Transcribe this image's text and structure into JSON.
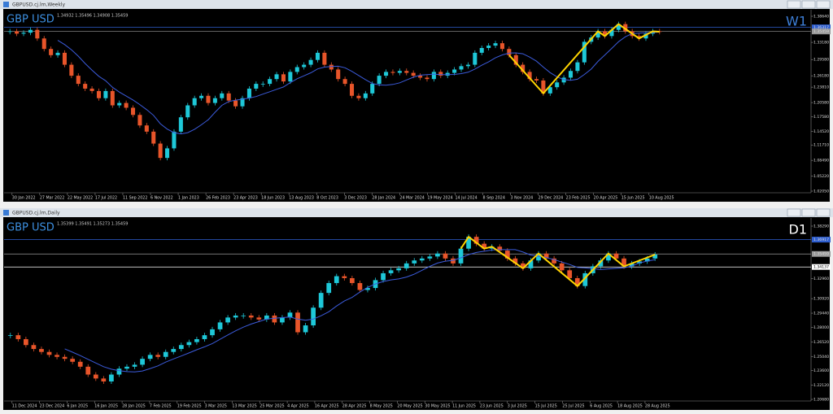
{
  "windows": [
    {
      "title": "GBPUSD.cj.lm,Weekly",
      "ohlc": "1.34932 1.35496 1.34908 1.35459",
      "symbol": "GBP USD",
      "timeframe": "W1",
      "timeframe_color": "#3d7fd8",
      "price_labels": [
        {
          "value": 1.3864,
          "label": "1.38640"
        },
        {
          "value": 1.36317,
          "label": "1.36317",
          "box": "#2f5fd0"
        },
        {
          "value": 1.35459,
          "label": "1.35459",
          "box": "#9a9a9a"
        },
        {
          "value": 1.3318,
          "label": "1.33180"
        },
        {
          "value": 1.2958,
          "label": "1.29580"
        },
        {
          "value": 1.2618,
          "label": "1.26180"
        },
        {
          "value": 1.2381,
          "label": "1.23810"
        },
        {
          "value": 1.2058,
          "label": "1.20580"
        },
        {
          "value": 1.1758,
          "label": "1.17580"
        },
        {
          "value": 1.1452,
          "label": "1.14520"
        },
        {
          "value": 1.1171,
          "label": "1.11710"
        },
        {
          "value": 1.0849,
          "label": "1.08490"
        },
        {
          "value": 1.0522,
          "label": "1.05220"
        },
        {
          "value": 1.0205,
          "label": "1.02050"
        }
      ],
      "date_labels": [
        "30 Jan 2022",
        "27 Mar 2022",
        "22 May 2022",
        "17 Jul 2022",
        "11 Sep 2022",
        "6 Nov 2022",
        "1 Jan 2023",
        "26 Feb 2023",
        "23 Apr 2023",
        "18 Jun 2023",
        "13 Aug 2023",
        "8 Oct 2023",
        "3 Dec 2023",
        "28 Jan 2024",
        "24 Mar 2024",
        "19 May 2024",
        "14 Jul 2024",
        "8 Sep 2024",
        "3 Nov 2024",
        "29 Dec 2024",
        "23 Feb 2025",
        "20 Apr 2025",
        "15 Jun 2025",
        "10 Aug 2025"
      ],
      "closes": [
        1.355,
        1.35,
        1.352,
        1.358,
        1.34,
        1.318,
        1.305,
        1.31,
        1.285,
        1.262,
        1.245,
        1.235,
        1.23,
        1.215,
        1.23,
        1.2,
        1.205,
        1.195,
        1.18,
        1.158,
        1.145,
        1.12,
        1.09,
        1.11,
        1.145,
        1.175,
        1.2,
        1.215,
        1.22,
        1.205,
        1.215,
        1.225,
        1.21,
        1.198,
        1.215,
        1.235,
        1.245,
        1.245,
        1.255,
        1.265,
        1.25,
        1.27,
        1.28,
        1.285,
        1.295,
        1.31,
        1.285,
        1.275,
        1.255,
        1.245,
        1.22,
        1.215,
        1.225,
        1.245,
        1.262,
        1.27,
        1.268,
        1.272,
        1.268,
        1.262,
        1.258,
        1.255,
        1.27,
        1.262,
        1.268,
        1.275,
        1.282,
        1.285,
        1.31,
        1.32,
        1.325,
        1.33,
        1.318,
        1.305,
        1.285,
        1.27,
        1.255,
        1.252,
        1.225,
        1.238,
        1.248,
        1.258,
        1.272,
        1.29,
        1.333,
        1.342,
        1.355,
        1.345,
        1.358,
        1.37,
        1.355,
        1.345,
        1.34,
        1.35,
        1.355,
        1.354
      ]
    },
    {
      "title": "GBPUSD.cj.lm,Daily",
      "ohlc": "1.35399 1.35491 1.35273 1.35459",
      "symbol": "GBP USD",
      "timeframe": "D1",
      "timeframe_color": "#ffffff",
      "price_labels": [
        {
          "value": 1.3829,
          "label": "1.38290"
        },
        {
          "value": 1.36917,
          "label": "1.36917",
          "box": "#2f5fd0"
        },
        {
          "value": 1.35459,
          "label": "1.35459",
          "box": "#9a9a9a"
        },
        {
          "value": 1.34137,
          "label": "1.34137",
          "box": "#ffffff"
        },
        {
          "value": 1.3296,
          "label": "1.32960"
        },
        {
          "value": 1.3092,
          "label": "1.30920"
        },
        {
          "value": 1.2944,
          "label": "1.29440"
        },
        {
          "value": 1.28,
          "label": "1.28000"
        },
        {
          "value": 1.2652,
          "label": "1.26520"
        },
        {
          "value": 1.2504,
          "label": "1.25040"
        },
        {
          "value": 1.236,
          "label": "1.23600"
        },
        {
          "value": 1.2212,
          "label": "1.22120"
        },
        {
          "value": 1.2068,
          "label": "1.20680"
        }
      ],
      "date_labels": [
        "11 Dec 2024",
        "23 Dec 2024",
        "6 Jan 2025",
        "16 Jan 2025",
        "28 Jan 2025",
        "7 Feb 2025",
        "19 Feb 2025",
        "3 Mar 2025",
        "13 Mar 2025",
        "25 Mar 2025",
        "4 Apr 2025",
        "16 Apr 2025",
        "28 Apr 2025",
        "8 May 2025",
        "20 May 2025",
        "30 May 2025",
        "11 Jun 2025",
        "23 Jun 2025",
        "3 Jul 2025",
        "15 Jul 2025",
        "25 Jul 2025",
        "6 Aug 2025",
        "18 Aug 2025",
        "28 Aug 2025"
      ],
      "closes": [
        1.272,
        1.268,
        1.262,
        1.258,
        1.255,
        1.252,
        1.25,
        1.248,
        1.245,
        1.24,
        1.232,
        1.228,
        1.225,
        1.232,
        1.238,
        1.24,
        1.242,
        1.248,
        1.252,
        1.25,
        1.255,
        1.258,
        1.262,
        1.265,
        1.268,
        1.272,
        1.278,
        1.285,
        1.29,
        1.292,
        1.292,
        1.29,
        1.288,
        1.292,
        1.285,
        1.29,
        1.295,
        1.275,
        1.282,
        1.3,
        1.315,
        1.325,
        1.332,
        1.33,
        1.325,
        1.318,
        1.32,
        1.328,
        1.335,
        1.338,
        1.34,
        1.345,
        1.348,
        1.35,
        1.352,
        1.355,
        1.35,
        1.345,
        1.36,
        1.372,
        1.365,
        1.36,
        1.362,
        1.358,
        1.35,
        1.345,
        1.34,
        1.348,
        1.355,
        1.35,
        1.345,
        1.338,
        1.33,
        1.322,
        1.335,
        1.342,
        1.348,
        1.355,
        1.35,
        1.342,
        1.345,
        1.347,
        1.35,
        1.354
      ]
    }
  ]
}
